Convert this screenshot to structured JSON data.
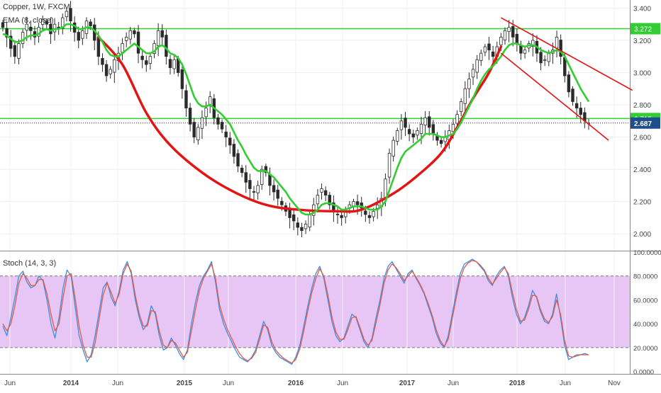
{
  "header": {
    "title": "Copper, 1W, FXCM",
    "ema_label": "EMA (8, close)",
    "stoch_label": "Stoch (14, 3, 3)"
  },
  "colors": {
    "up": "#2b2b2b",
    "down": "#2b2b2b",
    "ema": "#32cd32",
    "cup": "#e31414",
    "channel": "#e31414",
    "resistance": "#32cd32",
    "stoch_k": "#3d8fe0",
    "stoch_d": "#e05a4a",
    "stoch_band": "#e7c6f5",
    "price_badge": "#1f4e8c"
  },
  "chart_data": [
    {
      "type": "candlestick",
      "name": "price",
      "ylim": [
        1.9,
        3.45
      ],
      "y_ticks": [
        "3.400",
        "3.200",
        "3.000",
        "2.800",
        "2.600",
        "2.400",
        "2.200",
        "2.000"
      ],
      "y_tick_values": [
        3.4,
        3.2,
        3.0,
        2.8,
        2.6,
        2.4,
        2.2,
        2.0
      ],
      "x_ticks": [
        "Jun",
        "2014",
        "Jun",
        "2015",
        "Jun",
        "2016",
        "Jun",
        "2017",
        "Jun",
        "2018",
        "Jun",
        "Nov"
      ],
      "horizontal_lines": [
        {
          "value": 3.272,
          "label": "3.272"
        },
        {
          "value": 2.715,
          "label": "2.715"
        }
      ],
      "last_price": {
        "value": 2.687,
        "label": "2.687"
      },
      "closes": [
        3.28,
        3.22,
        3.15,
        3.1,
        3.18,
        3.25,
        3.3,
        3.26,
        3.22,
        3.28,
        3.33,
        3.3,
        3.24,
        3.3,
        3.28,
        3.34,
        3.38,
        3.32,
        3.25,
        3.2,
        3.26,
        3.32,
        3.29,
        3.2,
        3.1,
        3.05,
        2.98,
        3.02,
        3.08,
        3.12,
        3.18,
        3.22,
        3.26,
        3.24,
        3.12,
        3.08,
        3.05,
        3.1,
        3.18,
        3.26,
        3.22,
        3.1,
        3.03,
        3.08,
        3.0,
        2.9,
        2.78,
        2.68,
        2.6,
        2.66,
        2.72,
        2.78,
        2.85,
        2.72,
        2.68,
        2.65,
        2.6,
        2.55,
        2.48,
        2.42,
        2.38,
        2.32,
        2.28,
        2.26,
        2.3,
        2.4,
        2.38,
        2.3,
        2.26,
        2.22,
        2.18,
        2.14,
        2.1,
        2.08,
        2.04,
        2.02,
        2.06,
        2.12,
        2.18,
        2.24,
        2.28,
        2.24,
        2.18,
        2.14,
        2.12,
        2.1,
        2.14,
        2.18,
        2.2,
        2.18,
        2.16,
        2.12,
        2.1,
        2.14,
        2.18,
        2.22,
        2.34,
        2.5,
        2.58,
        2.64,
        2.7,
        2.66,
        2.62,
        2.6,
        2.64,
        2.68,
        2.72,
        2.66,
        2.62,
        2.58,
        2.56,
        2.6,
        2.64,
        2.68,
        2.74,
        2.82,
        2.9,
        2.96,
        3.02,
        3.08,
        3.12,
        3.16,
        3.14,
        3.1,
        3.16,
        3.22,
        3.26,
        3.28,
        3.22,
        3.18,
        3.12,
        3.14,
        3.18,
        3.2,
        3.12,
        3.06,
        3.08,
        3.12,
        3.14,
        3.22,
        3.1,
        2.98,
        2.88,
        2.82,
        2.78,
        2.74,
        2.7,
        2.687
      ],
      "ema_8": [
        3.24,
        3.23,
        3.21,
        3.19,
        3.19,
        3.2,
        3.22,
        3.23,
        3.23,
        3.24,
        3.26,
        3.27,
        3.26,
        3.27,
        3.27,
        3.28,
        3.3,
        3.3,
        3.29,
        3.27,
        3.27,
        3.28,
        3.28,
        3.26,
        3.23,
        3.19,
        3.14,
        3.11,
        3.1,
        3.1,
        3.12,
        3.14,
        3.16,
        3.18,
        3.16,
        3.14,
        3.12,
        3.12,
        3.13,
        3.16,
        3.17,
        3.15,
        3.12,
        3.11,
        3.09,
        3.05,
        2.99,
        2.92,
        2.85,
        2.81,
        2.79,
        2.79,
        2.8,
        2.78,
        2.76,
        2.74,
        2.71,
        2.68,
        2.63,
        2.58,
        2.54,
        2.49,
        2.45,
        2.41,
        2.39,
        2.39,
        2.39,
        2.37,
        2.35,
        2.32,
        2.29,
        2.26,
        2.22,
        2.19,
        2.16,
        2.13,
        2.12,
        2.12,
        2.13,
        2.15,
        2.18,
        2.19,
        2.19,
        2.18,
        2.17,
        2.15,
        2.15,
        2.16,
        2.17,
        2.17,
        2.17,
        2.16,
        2.15,
        2.15,
        2.15,
        2.17,
        2.2,
        2.27,
        2.34,
        2.41,
        2.47,
        2.51,
        2.53,
        2.55,
        2.57,
        2.59,
        2.62,
        2.62,
        2.62,
        2.61,
        2.6,
        2.6,
        2.61,
        2.62,
        2.65,
        2.69,
        2.74,
        2.79,
        2.84,
        2.9,
        2.95,
        2.99,
        3.02,
        3.04,
        3.07,
        3.1,
        3.14,
        3.17,
        3.18,
        3.18,
        3.17,
        3.16,
        3.17,
        3.17,
        3.16,
        3.14,
        3.13,
        3.12,
        3.13,
        3.14,
        3.13,
        3.1,
        3.05,
        3.0,
        2.95,
        2.9,
        2.86,
        2.82
      ],
      "cup_curve": [
        [
          24,
          3.22
        ],
        [
          30,
          3.05
        ],
        [
          36,
          2.75
        ],
        [
          42,
          2.55
        ],
        [
          50,
          2.38
        ],
        [
          58,
          2.26
        ],
        [
          66,
          2.18
        ],
        [
          74,
          2.15
        ],
        [
          84,
          2.14
        ],
        [
          90,
          2.15
        ],
        [
          98,
          2.25
        ],
        [
          104,
          2.36
        ],
        [
          110,
          2.5
        ],
        [
          114,
          2.66
        ],
        [
          118,
          2.84
        ],
        [
          122,
          3.0
        ],
        [
          125,
          3.16
        ]
      ],
      "channel_lines": [
        {
          "from": [
            125,
            3.34
          ],
          "to": [
            158,
            2.89
          ]
        },
        {
          "from": [
            125,
            3.12
          ],
          "to": [
            152,
            2.58
          ]
        }
      ]
    },
    {
      "type": "line",
      "name": "stochastic",
      "ylim": [
        -2,
        100
      ],
      "y_ticks": [
        "100.0000",
        "80.0000",
        "60.0000",
        "40.0000",
        "20.0000",
        "0.0000"
      ],
      "y_tick_values": [
        100,
        80,
        60,
        40,
        20,
        0
      ],
      "band": [
        20,
        80
      ],
      "series": [
        {
          "values": [
            38,
            30,
            45,
            62,
            80,
            84,
            75,
            70,
            72,
            80,
            76,
            60,
            40,
            28,
            45,
            70,
            85,
            80,
            55,
            30,
            18,
            8,
            14,
            30,
            50,
            70,
            75,
            62,
            55,
            68,
            85,
            92,
            82,
            60,
            45,
            35,
            40,
            55,
            48,
            30,
            18,
            20,
            28,
            22,
            15,
            10,
            18,
            40,
            58,
            72,
            80,
            85,
            92,
            75,
            52,
            40,
            32,
            25,
            18,
            12,
            10,
            8,
            12,
            18,
            30,
            42,
            35,
            22,
            16,
            12,
            10,
            8,
            6,
            12,
            22,
            38,
            55,
            70,
            82,
            88,
            78,
            60,
            42,
            30,
            25,
            28,
            38,
            48,
            45,
            35,
            25,
            20,
            28,
            45,
            60,
            78,
            88,
            92,
            86,
            80,
            74,
            82,
            85,
            78,
            72,
            65,
            55,
            45,
            32,
            24,
            20,
            30,
            48,
            66,
            82,
            90,
            92,
            94,
            92,
            88,
            84,
            76,
            72,
            80,
            85,
            88,
            80,
            62,
            48,
            40,
            45,
            55,
            68,
            62,
            50,
            42,
            40,
            48,
            65,
            45,
            22,
            10,
            12,
            14,
            14,
            15,
            14
          ]
        },
        {
          "values": [
            40,
            34,
            40,
            55,
            74,
            82,
            78,
            72,
            72,
            77,
            77,
            65,
            48,
            34,
            40,
            62,
            80,
            82,
            62,
            38,
            22,
            12,
            12,
            24,
            44,
            64,
            74,
            66,
            57,
            65,
            82,
            90,
            84,
            64,
            48,
            38,
            38,
            51,
            50,
            34,
            22,
            20,
            26,
            24,
            18,
            12,
            16,
            34,
            52,
            68,
            78,
            84,
            90,
            78,
            56,
            44,
            35,
            28,
            21,
            15,
            11,
            9,
            11,
            16,
            27,
            39,
            37,
            25,
            18,
            14,
            11,
            9,
            7,
            10,
            19,
            34,
            51,
            66,
            78,
            86,
            80,
            64,
            46,
            33,
            27,
            27,
            35,
            45,
            46,
            37,
            27,
            22,
            26,
            41,
            56,
            74,
            85,
            90,
            87,
            82,
            76,
            80,
            84,
            79,
            73,
            66,
            57,
            47,
            35,
            26,
            21,
            27,
            44,
            62,
            78,
            87,
            91,
            93,
            92,
            89,
            85,
            78,
            73,
            78,
            83,
            87,
            82,
            66,
            52,
            42,
            43,
            52,
            64,
            63,
            52,
            44,
            41,
            46,
            60,
            48,
            26,
            13,
            12,
            13,
            14,
            14,
            14
          ]
        }
      ]
    }
  ],
  "x_axis": {
    "labels": [
      "Jun",
      "2014",
      "Jun",
      "2015",
      "Jun",
      "2016",
      "Jun",
      "2017",
      "Jun",
      "2018",
      "Jun",
      "Nov"
    ]
  }
}
